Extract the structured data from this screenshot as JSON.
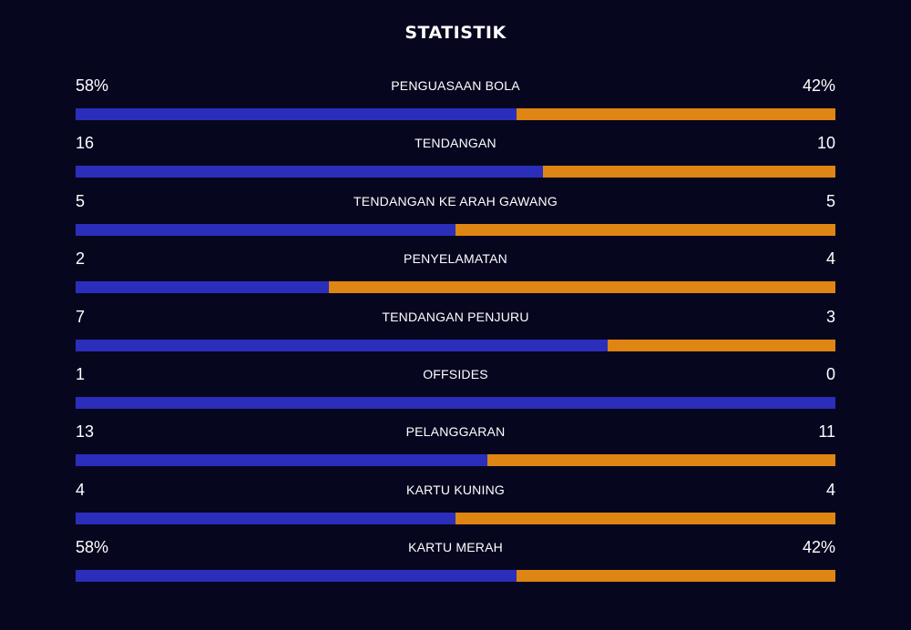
{
  "header": {
    "title": "STATISTIK"
  },
  "colors": {
    "background": "#07061f",
    "home": "#2b2eba",
    "away": "#de8513",
    "text": "#ffffff"
  },
  "stats": [
    {
      "label": "PENGUASAAN BOLA",
      "home": "58%",
      "away": "42%",
      "home_share": 0.58
    },
    {
      "label": "TENDANGAN",
      "home": "16",
      "away": "10",
      "home_share": 0.615
    },
    {
      "label": "TENDANGAN KE ARAH GAWANG",
      "home": "5",
      "away": "5",
      "home_share": 0.5
    },
    {
      "label": "PENYELAMATAN",
      "home": "2",
      "away": "4",
      "home_share": 0.333
    },
    {
      "label": "TENDANGAN PENJURU",
      "home": "7",
      "away": "3",
      "home_share": 0.7
    },
    {
      "label": "OFFSIDES",
      "home": "1",
      "away": "0",
      "home_share": 1.0
    },
    {
      "label": "PELANGGARAN",
      "home": "13",
      "away": "11",
      "home_share": 0.542
    },
    {
      "label": "KARTU KUNING",
      "home": "4",
      "away": "4",
      "home_share": 0.5
    },
    {
      "label": "KARTU MERAH",
      "home": "58%",
      "away": "42%",
      "home_share": 0.58
    }
  ]
}
